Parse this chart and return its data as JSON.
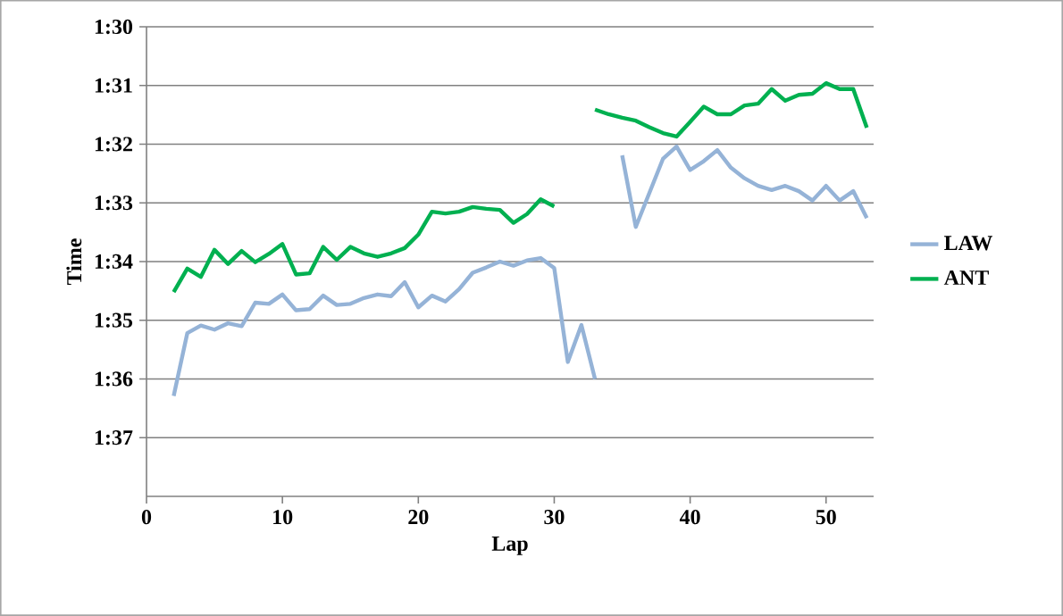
{
  "chart_data": {
    "type": "line",
    "xlabel": "Lap",
    "ylabel": "Time",
    "xlim": [
      0,
      53.5
    ],
    "xticks": [
      0,
      10,
      20,
      30,
      40,
      50
    ],
    "ylim": [
      98,
      90
    ],
    "yticks": [
      {
        "value": 90,
        "label": "1:30"
      },
      {
        "value": 91,
        "label": "1:31"
      },
      {
        "value": 92,
        "label": "1:32"
      },
      {
        "value": 93,
        "label": "1:33"
      },
      {
        "value": 94,
        "label": "1:34"
      },
      {
        "value": 95,
        "label": "1:35"
      },
      {
        "value": 96,
        "label": "1:36"
      },
      {
        "value": 97,
        "label": "1:37"
      }
    ],
    "grid": "y",
    "legend": "right",
    "series": [
      {
        "name": "LAW",
        "color": "#95b3d7",
        "x": [
          2,
          3,
          4,
          5,
          6,
          7,
          8,
          9,
          10,
          11,
          12,
          13,
          14,
          15,
          16,
          17,
          18,
          19,
          20,
          21,
          22,
          23,
          24,
          25,
          26,
          27,
          28,
          29,
          30,
          31,
          32,
          33,
          34,
          35,
          36,
          37,
          38,
          39,
          40,
          41,
          42,
          43,
          44,
          45,
          46,
          47,
          48,
          49,
          50,
          51,
          52,
          53
        ],
        "values": [
          96.29,
          95.22,
          95.09,
          95.16,
          95.05,
          95.1,
          94.7,
          94.72,
          94.56,
          94.83,
          94.81,
          94.58,
          94.74,
          94.72,
          94.62,
          94.56,
          94.59,
          94.35,
          94.78,
          94.58,
          94.68,
          94.47,
          94.19,
          94.1,
          94.0,
          94.07,
          93.98,
          93.94,
          94.11,
          95.71,
          95.08,
          96.0,
          null,
          92.19,
          93.41,
          92.83,
          92.25,
          92.04,
          92.44,
          92.29,
          92.1,
          92.4,
          92.58,
          92.71,
          92.78,
          92.71,
          92.8,
          92.96,
          92.71,
          92.96,
          92.8,
          93.26
        ]
      },
      {
        "name": "ANT",
        "color": "#00b050",
        "x": [
          2,
          3,
          4,
          5,
          6,
          7,
          8,
          9,
          10,
          11,
          12,
          13,
          14,
          15,
          16,
          17,
          18,
          19,
          20,
          21,
          22,
          23,
          24,
          25,
          26,
          27,
          28,
          29,
          30,
          31,
          32,
          33,
          34,
          35,
          36,
          37,
          38,
          39,
          40,
          41,
          42,
          43,
          44,
          45,
          46,
          47,
          48,
          49,
          50,
          51,
          52,
          53
        ],
        "values": [
          94.52,
          94.12,
          94.26,
          93.8,
          94.04,
          93.82,
          94.01,
          93.87,
          93.7,
          94.22,
          94.2,
          93.75,
          93.97,
          93.75,
          93.86,
          93.92,
          93.86,
          93.77,
          93.54,
          93.15,
          93.18,
          93.15,
          93.07,
          93.1,
          93.12,
          93.34,
          93.19,
          92.94,
          93.06,
          null,
          null,
          91.41,
          91.49,
          91.55,
          91.6,
          91.71,
          91.81,
          91.87,
          91.62,
          91.36,
          91.49,
          91.49,
          91.34,
          91.31,
          91.06,
          91.26,
          91.16,
          91.14,
          90.96,
          91.06,
          91.06,
          91.72
        ]
      }
    ]
  }
}
